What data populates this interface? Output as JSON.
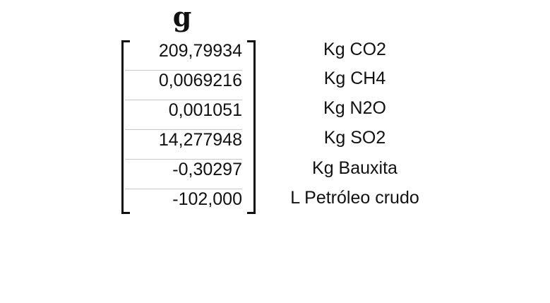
{
  "heading": "g",
  "values": [
    "209,79934",
    "0,0069216",
    "0,001051",
    "14,277948",
    "-0,30297",
    "-102,000"
  ],
  "units": [
    "Kg CO2",
    "Kg CH4",
    "Kg N2O",
    "Kg SO2",
    "Kg Bauxita",
    "L Petróleo crudo"
  ]
}
